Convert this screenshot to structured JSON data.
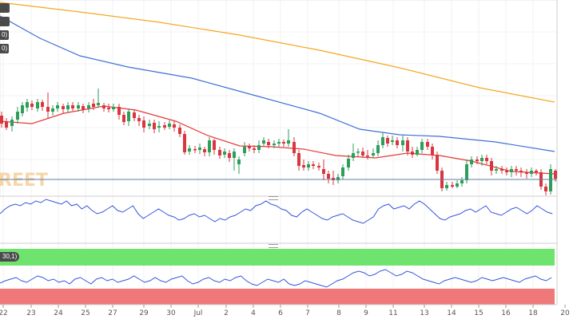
{
  "chart_data": {
    "type": "candlestick",
    "watermark": "REET",
    "price_line": {
      "value": 0
    },
    "x_tick_labels": [
      "22",
      "23",
      "24",
      "25",
      "27",
      "29",
      "30",
      "Jul",
      "2",
      "4",
      "6",
      "7",
      "8",
      "9",
      "11",
      "13",
      "14",
      "15",
      "16",
      "18",
      "20"
    ],
    "legend_badges": [
      "",
      "",
      "0)",
      "0)"
    ],
    "indicator_label": "30,1)",
    "colors": {
      "up": "#2e9e5b",
      "down": "#d9363e",
      "sma_short": "#e53935",
      "sma_mid": "#3f6fd8",
      "sma_long": "#f5a623",
      "oscillator": "#3355dd",
      "overbought_band": "#6ee46e",
      "oversold_band": "#f07878"
    }
  }
}
